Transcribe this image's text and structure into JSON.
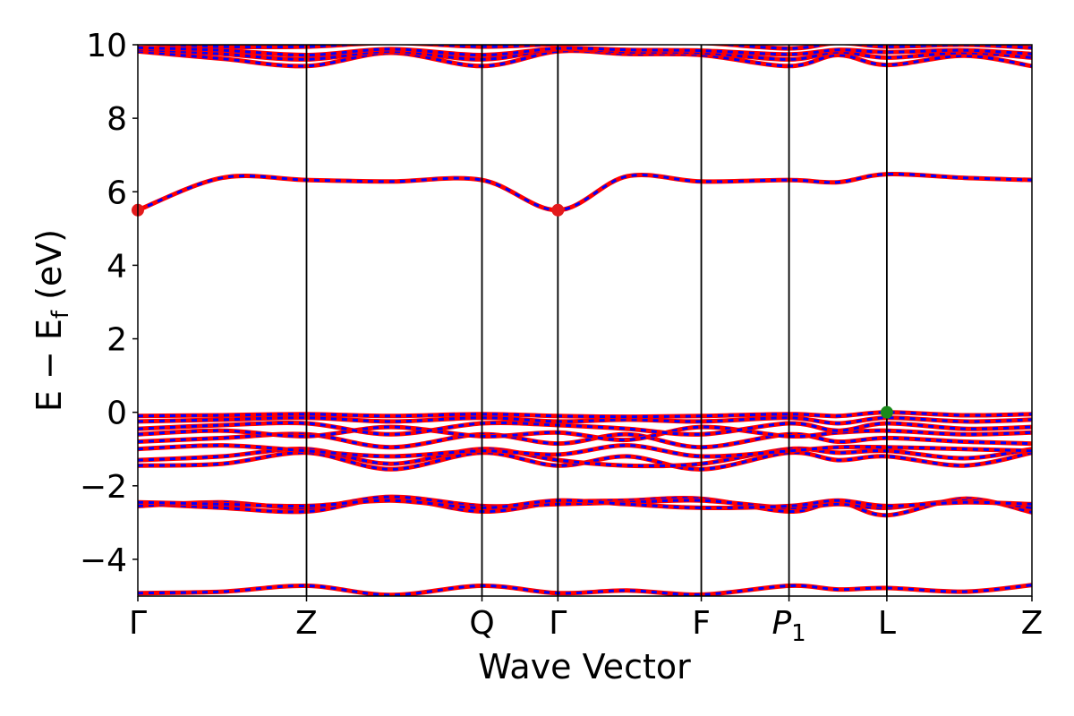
{
  "chart_data": {
    "type": "line",
    "xlabel": "Wave Vector",
    "ylabel": {
      "pre": "E − E",
      "sub": "f",
      "post": " (eV)"
    },
    "ylim": [
      -5,
      10
    ],
    "yticks": [
      -4,
      -2,
      0,
      2,
      4,
      6,
      8,
      10
    ],
    "ytick_labels": [
      "−4",
      "−2",
      "0",
      "2",
      "4",
      "6",
      "8",
      "10"
    ],
    "kpoints": [
      {
        "pos": 0.0,
        "label": "Γ"
      },
      {
        "pos": 1.0,
        "label": "Z"
      },
      {
        "pos": 2.04,
        "label": "Q"
      },
      {
        "pos": 2.49,
        "label": "Γ"
      },
      {
        "pos": 3.34,
        "label": "F"
      },
      {
        "pos": 3.86,
        "label": "P",
        "sub": "1"
      },
      {
        "pos": 4.44,
        "label": "L"
      },
      {
        "pos": 5.3,
        "label": "Z"
      }
    ],
    "grid": false,
    "legend": "none",
    "line_colors": {
      "up": "#ff0000",
      "down": "#0000ff"
    },
    "markers": [
      {
        "kpos": 0.0,
        "energy": 5.5,
        "color": "#e31a1c",
        "role": "CBM"
      },
      {
        "kpos": 2.49,
        "energy": 5.5,
        "color": "#e31a1c",
        "role": "CBM"
      },
      {
        "kpos": 4.44,
        "energy": 0.0,
        "color": "#1a8a1a",
        "role": "VBM"
      }
    ],
    "bands": [
      {
        "name": "b1",
        "x": [
          0,
          0.5,
          1.0,
          1.5,
          2.04,
          2.49,
          2.9,
          3.34,
          3.86,
          4.15,
          4.44,
          4.9,
          5.3
        ],
        "y": [
          -4.92,
          -4.88,
          -4.72,
          -4.97,
          -4.72,
          -4.92,
          -4.85,
          -4.96,
          -4.72,
          -4.82,
          -4.78,
          -4.88,
          -4.7
        ]
      },
      {
        "name": "b2",
        "x": [
          0,
          0.5,
          1.0,
          1.5,
          2.04,
          2.49,
          2.9,
          3.34,
          3.86,
          4.15,
          4.44,
          4.9,
          5.3
        ],
        "y": [
          -2.48,
          -2.6,
          -2.7,
          -2.35,
          -2.7,
          -2.45,
          -2.4,
          -2.35,
          -2.7,
          -2.45,
          -2.8,
          -2.35,
          -2.72
        ]
      },
      {
        "name": "b3",
        "x": [
          0,
          0.5,
          1.0,
          1.5,
          2.04,
          2.49,
          2.9,
          3.34,
          3.86,
          4.15,
          4.44,
          4.9,
          5.3
        ],
        "y": [
          -2.55,
          -2.45,
          -2.6,
          -2.3,
          -2.55,
          -2.5,
          -2.45,
          -2.4,
          -2.6,
          -2.5,
          -2.6,
          -2.4,
          -2.6
        ]
      },
      {
        "name": "b4",
        "x": [
          0,
          0.5,
          1.0,
          1.5,
          2.04,
          2.49,
          2.9,
          3.34,
          3.86,
          4.15,
          4.44,
          4.9,
          5.3
        ],
        "y": [
          -2.45,
          -2.5,
          -2.55,
          -2.4,
          -2.6,
          -2.4,
          -2.5,
          -2.6,
          -2.55,
          -2.4,
          -2.55,
          -2.45,
          -2.5
        ]
      },
      {
        "name": "b5",
        "x": [
          0,
          0.5,
          1.0,
          1.5,
          2.04,
          2.49,
          2.9,
          3.34,
          3.86,
          4.15,
          4.44,
          4.9,
          5.3
        ],
        "y": [
          -1.45,
          -1.4,
          -1.1,
          -1.55,
          -1.1,
          -1.45,
          -1.2,
          -1.55,
          -1.1,
          -1.3,
          -1.2,
          -1.45,
          -1.1
        ]
      },
      {
        "name": "b6",
        "x": [
          0,
          0.5,
          1.0,
          1.5,
          2.04,
          2.49,
          2.9,
          3.34,
          3.86,
          4.15,
          4.44,
          4.9,
          5.3
        ],
        "y": [
          -1.3,
          -1.2,
          -1.0,
          -1.4,
          -1.0,
          -1.3,
          -1.45,
          -1.4,
          -1.0,
          -1.1,
          -1.05,
          -1.25,
          -1.0
        ]
      },
      {
        "name": "b7",
        "x": [
          0,
          0.5,
          1.0,
          1.5,
          2.04,
          2.49,
          2.9,
          3.34,
          3.86,
          4.15,
          4.44,
          4.9,
          5.3
        ],
        "y": [
          -1.0,
          -0.9,
          -1.05,
          -1.2,
          -1.05,
          -1.15,
          -0.9,
          -1.2,
          -1.05,
          -0.95,
          -0.95,
          -1.0,
          -1.05
        ]
      },
      {
        "name": "b8",
        "x": [
          0,
          0.5,
          1.0,
          1.5,
          2.04,
          2.49,
          2.9,
          3.34,
          3.86,
          4.15,
          4.44,
          4.9,
          5.3
        ],
        "y": [
          -0.8,
          -0.7,
          -0.6,
          -0.95,
          -0.6,
          -0.85,
          -0.6,
          -0.95,
          -0.6,
          -0.8,
          -0.7,
          -0.8,
          -0.85
        ]
      },
      {
        "name": "b9",
        "x": [
          0,
          0.5,
          1.0,
          1.5,
          2.04,
          2.49,
          2.9,
          3.34,
          3.86,
          4.15,
          4.44,
          4.9,
          5.3
        ],
        "y": [
          -0.6,
          -0.5,
          -0.65,
          -0.4,
          -0.65,
          -0.55,
          -0.75,
          -0.4,
          -0.65,
          -0.55,
          -0.5,
          -0.6,
          -0.55
        ]
      },
      {
        "name": "b10",
        "x": [
          0,
          0.5,
          1.0,
          1.5,
          2.04,
          2.49,
          2.9,
          3.34,
          3.86,
          4.15,
          4.44,
          4.9,
          5.3
        ],
        "y": [
          -0.45,
          -0.35,
          -0.3,
          -0.6,
          -0.3,
          -0.35,
          -0.45,
          -0.6,
          -0.3,
          -0.5,
          -0.3,
          -0.45,
          -0.4
        ]
      },
      {
        "name": "b11",
        "x": [
          0,
          0.5,
          1.0,
          1.5,
          2.04,
          2.49,
          2.9,
          3.34,
          3.86,
          4.15,
          4.44,
          4.9,
          5.3
        ],
        "y": [
          -0.25,
          -0.2,
          -0.15,
          -0.25,
          -0.15,
          -0.25,
          -0.2,
          -0.25,
          -0.15,
          -0.3,
          -0.15,
          -0.25,
          -0.2
        ]
      },
      {
        "name": "b12",
        "x": [
          0,
          0.5,
          1.0,
          1.5,
          2.04,
          2.49,
          2.9,
          3.34,
          3.86,
          4.15,
          4.44,
          4.9,
          5.3
        ],
        "y": [
          -0.1,
          -0.08,
          -0.05,
          -0.1,
          -0.05,
          -0.1,
          -0.12,
          -0.1,
          -0.05,
          -0.1,
          0.0,
          -0.08,
          -0.05
        ]
      },
      {
        "name": "b13",
        "x": [
          0,
          0.5,
          1.0,
          1.5,
          2.04,
          2.49,
          2.9,
          3.34,
          3.86,
          4.15,
          4.44,
          4.9,
          5.3
        ],
        "y": [
          5.5,
          6.38,
          6.32,
          6.28,
          6.32,
          5.5,
          6.42,
          6.28,
          6.32,
          6.26,
          6.48,
          6.38,
          6.32
        ]
      },
      {
        "name": "b14",
        "x": [
          0,
          0.5,
          1.0,
          1.5,
          2.04,
          2.49,
          2.9,
          3.34,
          3.86,
          4.15,
          4.44,
          4.9,
          5.3
        ],
        "y": [
          9.82,
          9.62,
          9.42,
          9.78,
          9.42,
          9.82,
          9.75,
          9.72,
          9.42,
          9.72,
          9.45,
          9.7,
          9.42
        ]
      },
      {
        "name": "b15",
        "x": [
          0,
          0.5,
          1.0,
          1.5,
          2.04,
          2.49,
          2.9,
          3.34,
          3.86,
          4.15,
          4.44,
          4.9,
          5.3
        ],
        "y": [
          9.88,
          9.75,
          9.6,
          9.82,
          9.6,
          9.88,
          9.8,
          9.78,
          9.6,
          9.8,
          9.65,
          9.78,
          9.65
        ]
      },
      {
        "name": "b16",
        "x": [
          0,
          0.5,
          1.0,
          1.5,
          2.04,
          2.49,
          2.9,
          3.34,
          3.86,
          4.15,
          4.44,
          4.9,
          5.3
        ],
        "y": [
          9.92,
          9.85,
          9.72,
          9.88,
          9.72,
          9.9,
          9.86,
          9.84,
          9.74,
          9.86,
          9.8,
          9.85,
          9.75
        ]
      },
      {
        "name": "b17",
        "x": [
          0,
          0.5,
          1.0,
          1.5,
          2.04,
          2.49,
          2.9,
          3.34,
          3.86,
          4.15,
          4.44,
          4.9,
          5.3
        ],
        "y": [
          10.05,
          9.95,
          9.95,
          10.05,
          9.95,
          10.02,
          10.05,
          10.05,
          9.9,
          10.05,
          9.95,
          10.0,
          9.92
        ]
      }
    ]
  }
}
